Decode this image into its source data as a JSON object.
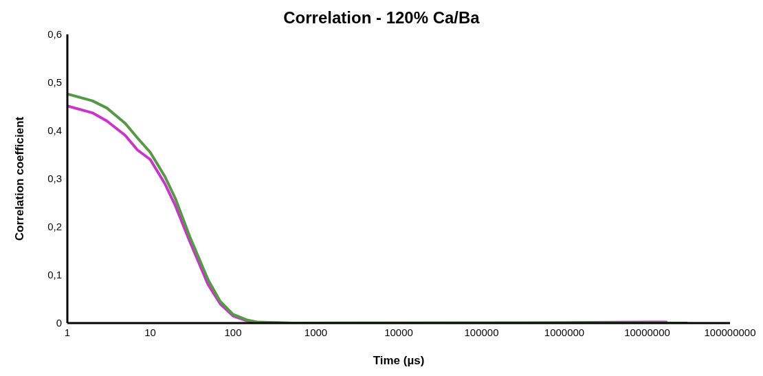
{
  "chart_data": {
    "type": "line",
    "title": "Correlation - 120% Ca/Ba",
    "xlabel": "Time (µs)",
    "ylabel": "Correlation coefficient",
    "log": "x",
    "grid": false,
    "legend": false,
    "marker": "none",
    "line_style": "solid",
    "xlim": [
      1,
      100000000
    ],
    "xticks": [
      1,
      10,
      100,
      1000,
      10000,
      100000,
      1000000,
      10000000,
      100000000
    ],
    "ylim": [
      0,
      0.6
    ],
    "yticks": [
      0,
      {
        "value": 0.1,
        "label": "0,1"
      },
      {
        "value": 0.2,
        "label": "0,2"
      },
      {
        "value": 0.3,
        "label": "0,3"
      },
      {
        "value": 0.4,
        "label": "0,4"
      },
      {
        "value": 0.5,
        "label": "0,5"
      },
      {
        "value": 0.6,
        "label": "0,6"
      }
    ],
    "series": [
      {
        "color": "#cc33cc",
        "x": [
          1,
          2,
          3,
          5,
          7,
          10,
          15,
          20,
          30,
          50,
          70,
          100,
          150,
          200,
          500,
          1000000,
          10000000,
          17000000
        ],
        "values": [
          0.451,
          0.437,
          0.42,
          0.39,
          0.36,
          0.34,
          0.29,
          0.245,
          0.17,
          0.08,
          0.04,
          0.015,
          0.004,
          0.001,
          0,
          0.001,
          0.002,
          0.002
        ]
      },
      {
        "color": "#559944",
        "x": [
          1,
          2,
          3,
          5,
          7,
          10,
          15,
          20,
          30,
          50,
          70,
          100,
          150,
          200,
          500,
          30000000
        ],
        "values": [
          0.476,
          0.462,
          0.447,
          0.415,
          0.385,
          0.355,
          0.305,
          0.26,
          0.18,
          0.09,
          0.045,
          0.018,
          0.006,
          0.002,
          0,
          0
        ]
      }
    ]
  }
}
